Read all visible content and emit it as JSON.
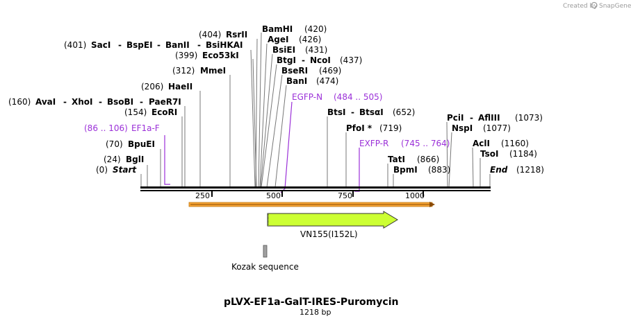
{
  "credit": {
    "text": "Created by",
    "brand": "SnapGene"
  },
  "plasmid": {
    "name": "pLVX-EF1a-GalT-IRES-Puromycin",
    "length": "1218 bp"
  },
  "ruler": {
    "ticks": [
      "250",
      "500",
      "750",
      "1000"
    ]
  },
  "sites": [
    {
      "pos": "(401)",
      "names": [
        "SacI",
        "BspEI",
        "BanII",
        "BsiHKAI"
      ]
    },
    {
      "pos": "(404)",
      "names": [
        "RsrII"
      ]
    },
    {
      "pos": "(399)",
      "names": [
        "Eco53kI"
      ]
    },
    {
      "pos": "(312)",
      "names": [
        "MmeI"
      ]
    },
    {
      "pos": "(206)",
      "names": [
        "HaeII"
      ]
    },
    {
      "pos": "(160)",
      "names": [
        "AvaI",
        "XhoI",
        "BsoBI",
        "PaeR7I"
      ]
    },
    {
      "pos": "(154)",
      "names": [
        "EcoRI"
      ]
    },
    {
      "pos": "(70)",
      "names": [
        "BpuEI"
      ]
    },
    {
      "pos": "(24)",
      "names": [
        "BglI"
      ]
    },
    {
      "pos": "(0)",
      "names": [
        "Start"
      ]
    },
    {
      "pos": "(420)",
      "names": [
        "BamHI"
      ]
    },
    {
      "pos": "(426)",
      "names": [
        "AgeI"
      ]
    },
    {
      "pos": "(431)",
      "names": [
        "BsiEI"
      ]
    },
    {
      "pos": "(437)",
      "names": [
        "BtgI",
        "NcoI"
      ]
    },
    {
      "pos": "(469)",
      "names": [
        "BseRI"
      ]
    },
    {
      "pos": "(474)",
      "names": [
        "BanI"
      ]
    },
    {
      "pos": "(652)",
      "names": [
        "BtsI",
        "BtsαI"
      ]
    },
    {
      "pos": "(719)",
      "names": [
        "PfoI *"
      ]
    },
    {
      "pos": "(866)",
      "names": [
        "TatI"
      ]
    },
    {
      "pos": "(883)",
      "names": [
        "BpmI"
      ]
    },
    {
      "pos": "(1073)",
      "names": [
        "PciI",
        "AflIII"
      ]
    },
    {
      "pos": "(1077)",
      "names": [
        "NspI"
      ]
    },
    {
      "pos": "(1160)",
      "names": [
        "AclI"
      ]
    },
    {
      "pos": "(1184)",
      "names": [
        "TsoI"
      ]
    },
    {
      "pos": "(1218)",
      "names": [
        "End"
      ]
    }
  ],
  "primers": [
    {
      "name": "EF1a-F",
      "range": "(86 .. 106)"
    },
    {
      "name": "EGFP-N",
      "range": "(484 .. 505)"
    },
    {
      "name": "EXFP-R",
      "range": "(745 .. 764)"
    }
  ],
  "features": [
    {
      "name": "VN155(I152L)"
    },
    {
      "name": "Kozak sequence"
    }
  ],
  "colors": {
    "primer": "#9b30d8",
    "feature_fill": "#ccff33",
    "orf_bar": "#f7a434",
    "kozak": "#a0a0a0"
  }
}
